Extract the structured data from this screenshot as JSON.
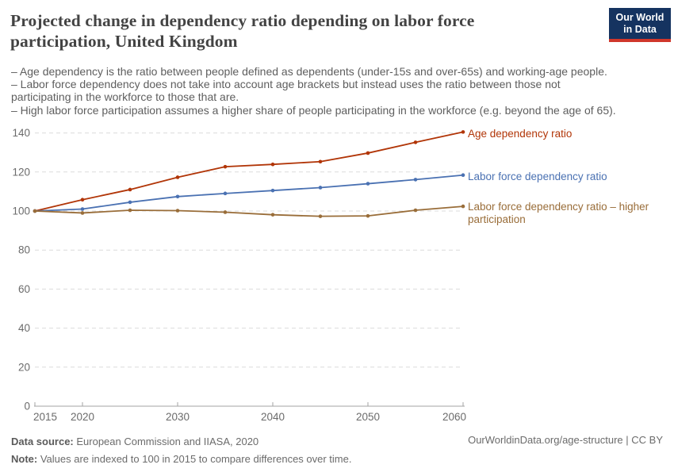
{
  "header": {
    "title": "Projected change in dependency ratio depending on labor force participation, United Kingdom",
    "title_lines": [
      "Projected change in dependency ratio depending on labor force",
      "participation, United Kingdom"
    ],
    "subtitle_lines": [
      "– Age dependency is the ratio between people defined as dependents (under-15s and over-65s) and working-age people.",
      "– Labor force dependency does not take into account age brackets but instead uses the ratio between those not",
      "participating in the workforce to those that are.",
      "– High labor force participation assumes a higher share of people participating in the workforce (e.g. beyond the age of 65)."
    ],
    "logo": {
      "line1": "Our World",
      "line2": "in Data",
      "bg_color": "#153360",
      "accent_color": "#d0372b"
    }
  },
  "chart_data": {
    "type": "line",
    "title": "Projected change in dependency ratio depending on labor force participation, United Kingdom",
    "x": [
      2015,
      2020,
      2025,
      2030,
      2035,
      2040,
      2045,
      2050,
      2055,
      2060
    ],
    "series": [
      {
        "name": "Age dependency ratio",
        "color": "#b13507",
        "values": [
          100,
          105.8,
          111,
          117.3,
          122.7,
          123.9,
          125.3,
          129.7,
          135.2,
          140.5
        ]
      },
      {
        "name": "Labor force dependency ratio",
        "color": "#4a71b2",
        "values": [
          100,
          101,
          104.5,
          107.4,
          109,
          110.5,
          112,
          114,
          116.1,
          118.4
        ]
      },
      {
        "name": "Labor force dependency ratio – higher participation",
        "color": "#996d39",
        "values": [
          100,
          99,
          100.4,
          100.2,
          99.4,
          98.1,
          97.3,
          97.5,
          100.4,
          102.4
        ]
      }
    ],
    "xlabel": "",
    "ylabel": "",
    "xlim": [
      2015,
      2060
    ],
    "ylim": [
      0,
      140
    ],
    "yticks": [
      0,
      20,
      40,
      60,
      80,
      100,
      120,
      140
    ],
    "xticks": [
      2015,
      2020,
      2030,
      2040,
      2050,
      2060
    ],
    "grid": "horizontal-dashed",
    "legend_position": "right-of-line-ends",
    "axis_color": "#a3a3a3",
    "grid_color": "#dcdcdc",
    "tick_label_color": "#6b6b6b"
  },
  "footer": {
    "datasource_label": "Data source:",
    "datasource_text": " European Commission and IIASA, 2020",
    "note_label": "Note:",
    "note_text": " Values are indexed to 100 in 2015 to compare differences over time.",
    "link_text": "OurWorldinData.org/age-structure | CC BY"
  }
}
